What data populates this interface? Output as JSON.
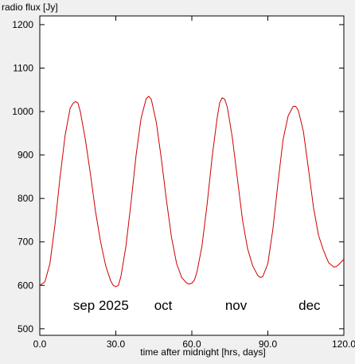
{
  "chart_data": {
    "type": "line",
    "title": "",
    "xlabel": "time after midnight [hrs, days]",
    "ylabel": "radio flux [Jy]",
    "xlim": [
      0,
      120
    ],
    "ylim": [
      485,
      1220
    ],
    "x_ticks": [
      "0.0",
      "30.0",
      "60.0",
      "90.0",
      "120.0"
    ],
    "y_ticks": [
      "500",
      "600",
      "700",
      "800",
      "900",
      "1000",
      "1100",
      "1200"
    ],
    "annotations": [
      {
        "label": "sep 2025",
        "x": 10
      },
      {
        "label": "oct",
        "x": 42
      },
      {
        "label": "nov",
        "x": 70
      },
      {
        "label": "dec",
        "x": 99
      }
    ],
    "grid": false,
    "series": [
      {
        "color": "#cc0000",
        "x": [
          0,
          2,
          4,
          6,
          8,
          10,
          12,
          13,
          14,
          15,
          16,
          18,
          20,
          22,
          24,
          26,
          28,
          29,
          30,
          31,
          32,
          34,
          36,
          38,
          40,
          42,
          43,
          44,
          46,
          48,
          50,
          52,
          54,
          56,
          58,
          59,
          60,
          61,
          62,
          64,
          66,
          68,
          70,
          71,
          72,
          73,
          74,
          76,
          78,
          80,
          82,
          84,
          86,
          87,
          88,
          90,
          92,
          94,
          96,
          98,
          100,
          101,
          102,
          104,
          106,
          108,
          110,
          112,
          114,
          116,
          117,
          118,
          120
        ],
        "y": [
          600,
          608,
          650,
          740,
          850,
          945,
          1008,
          1018,
          1023,
          1020,
          1000,
          935,
          855,
          770,
          700,
          645,
          610,
          600,
          597,
          600,
          620,
          690,
          790,
          900,
          985,
          1030,
          1035,
          1028,
          975,
          890,
          795,
          710,
          650,
          618,
          605,
          603,
          605,
          612,
          630,
          690,
          785,
          895,
          985,
          1020,
          1032,
          1028,
          1010,
          940,
          845,
          750,
          685,
          645,
          623,
          618,
          620,
          650,
          730,
          835,
          935,
          990,
          1012,
          1012,
          1003,
          955,
          870,
          780,
          715,
          680,
          652,
          642,
          643,
          648,
          660
        ]
      }
    ]
  }
}
